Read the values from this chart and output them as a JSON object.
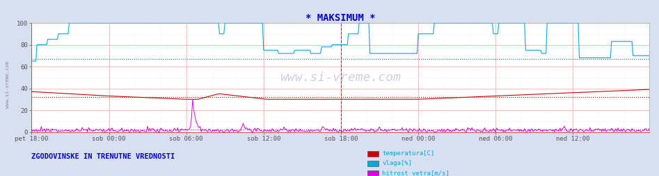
{
  "title": "* MAKSIMUM *",
  "title_color": "#0000cc",
  "title_fontsize": 10,
  "bg_color": "#d8dff0",
  "plot_bg_color": "#ffffff",
  "xlim": [
    0,
    575
  ],
  "ylim": [
    0,
    100
  ],
  "yticks": [
    0,
    20,
    40,
    60,
    80,
    100
  ],
  "xtick_labels": [
    "pet 18:00",
    "sob 00:00",
    "sob 06:00",
    "sob 12:00",
    "sob 18:00",
    "ned 00:00",
    "ned 06:00",
    "ned 12:00"
  ],
  "xtick_positions": [
    0,
    72,
    144,
    216,
    288,
    360,
    432,
    504
  ],
  "grid_color_major": "#ffaaaa",
  "grid_color_minor": "#ffdddd",
  "temp_color": "#cc0000",
  "humidity_color": "#00aadd",
  "wind_color": "#dd00dd",
  "avg_temp_color": "#880000",
  "avg_humidity_color": "#007799",
  "avg_wind_color": "#880088",
  "watermark_color": "#aaaacc",
  "left_label": "www.si-vreme.com",
  "left_label_color": "#8888aa",
  "bottom_left_label": "ZGODOVINSKE IN TRENUTNE VREDNOSTI",
  "bottom_left_color": "#0000cc",
  "legend_items": [
    "temperatura[C]",
    "vlaga[%]",
    "hitrost vetra[m/s]"
  ],
  "legend_colors": [
    "#cc0000",
    "#00aadd",
    "#dd00dd"
  ],
  "legend_text_color": "#00aadd",
  "avg_temp": 32,
  "avg_humidity": 67,
  "avg_wind": 2,
  "vline_x": 288,
  "vline_color": "#cc00cc"
}
